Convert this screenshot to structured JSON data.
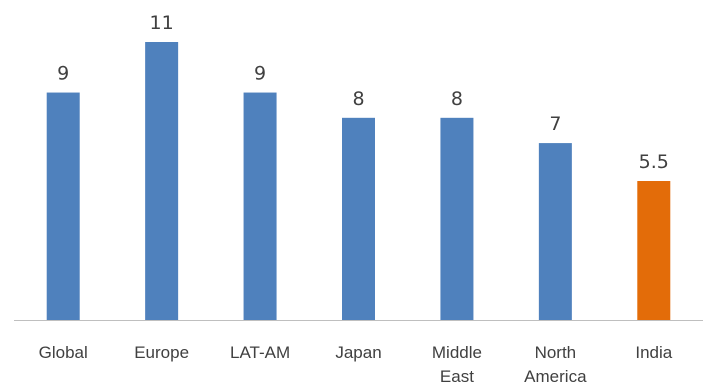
{
  "chart_data": {
    "type": "bar",
    "title": "",
    "xlabel": "",
    "ylabel": "",
    "categories": [
      [
        "Global"
      ],
      [
        "Europe"
      ],
      [
        "LAT-AM"
      ],
      [
        "Japan"
      ],
      [
        "Middle",
        "East"
      ],
      [
        "North",
        "America"
      ],
      [
        "India"
      ]
    ],
    "values": [
      9,
      11,
      9,
      8,
      8,
      7,
      5.5
    ],
    "value_labels": [
      "9",
      "11",
      "9",
      "8",
      "8",
      "7",
      "5.5"
    ],
    "ylim": [
      0,
      11
    ],
    "grid": false,
    "legend": "none",
    "bar_colors": [
      "#4F81BD",
      "#4F81BD",
      "#4F81BD",
      "#4F81BD",
      "#4F81BD",
      "#4F81BD",
      "#E36C09"
    ],
    "axis_color": "#BFBFBF"
  }
}
